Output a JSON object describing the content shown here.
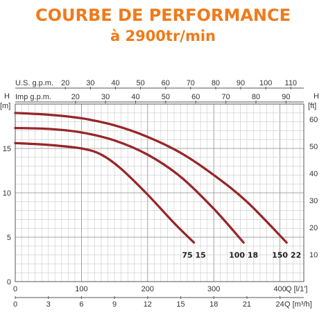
{
  "header": {
    "title": "COURBE DE PERFORMANCE",
    "subtitle": "à 2900tr/min"
  },
  "chart_data": {
    "type": "line",
    "x_unit_label": "Q [l/1']",
    "x_axis_lpm": {
      "range": [
        0,
        436
      ],
      "ticks": [
        0,
        100,
        200,
        300,
        400
      ]
    },
    "x_axis_m3h": {
      "label": "Q [m³/h]",
      "ticks": [
        0,
        3,
        6,
        9,
        12,
        15,
        18,
        21,
        24
      ]
    },
    "top_axis_us": {
      "label": "U.S. g.p.m.",
      "ticks": [
        20,
        30,
        40,
        50,
        60,
        70,
        80,
        90,
        100,
        110
      ]
    },
    "top_axis_imp": {
      "label": "Imp g.p.m.",
      "ticks": [
        20,
        30,
        40,
        50,
        60,
        70,
        80,
        90
      ]
    },
    "y_axis_m": {
      "label_top": "H",
      "unit": "[m]",
      "range": [
        0,
        20
      ],
      "ticks": [
        0,
        5,
        10,
        15
      ]
    },
    "y_axis_ft": {
      "label_top": "H",
      "unit": "[ft]",
      "ticks": [
        10,
        20,
        30,
        40,
        50,
        60
      ]
    },
    "grid": true,
    "series_color": "#a8262a",
    "series": [
      {
        "name": "75 15",
        "x": [
          0,
          50,
          100,
          130,
          160,
          200,
          240,
          270
        ],
        "y": [
          15.6,
          15.4,
          15.0,
          14.3,
          12.7,
          9.8,
          6.6,
          4.4
        ]
      },
      {
        "name": "100 18",
        "x": [
          0,
          50,
          100,
          150,
          200,
          250,
          300,
          345
        ],
        "y": [
          17.3,
          17.2,
          16.8,
          15.9,
          14.3,
          11.8,
          8.2,
          4.4
        ]
      },
      {
        "name": "150 22",
        "x": [
          0,
          50,
          100,
          150,
          200,
          250,
          300,
          350,
          410
        ],
        "y": [
          19.0,
          18.8,
          18.4,
          17.6,
          16.3,
          14.5,
          12.0,
          9.0,
          4.4
        ]
      }
    ]
  }
}
